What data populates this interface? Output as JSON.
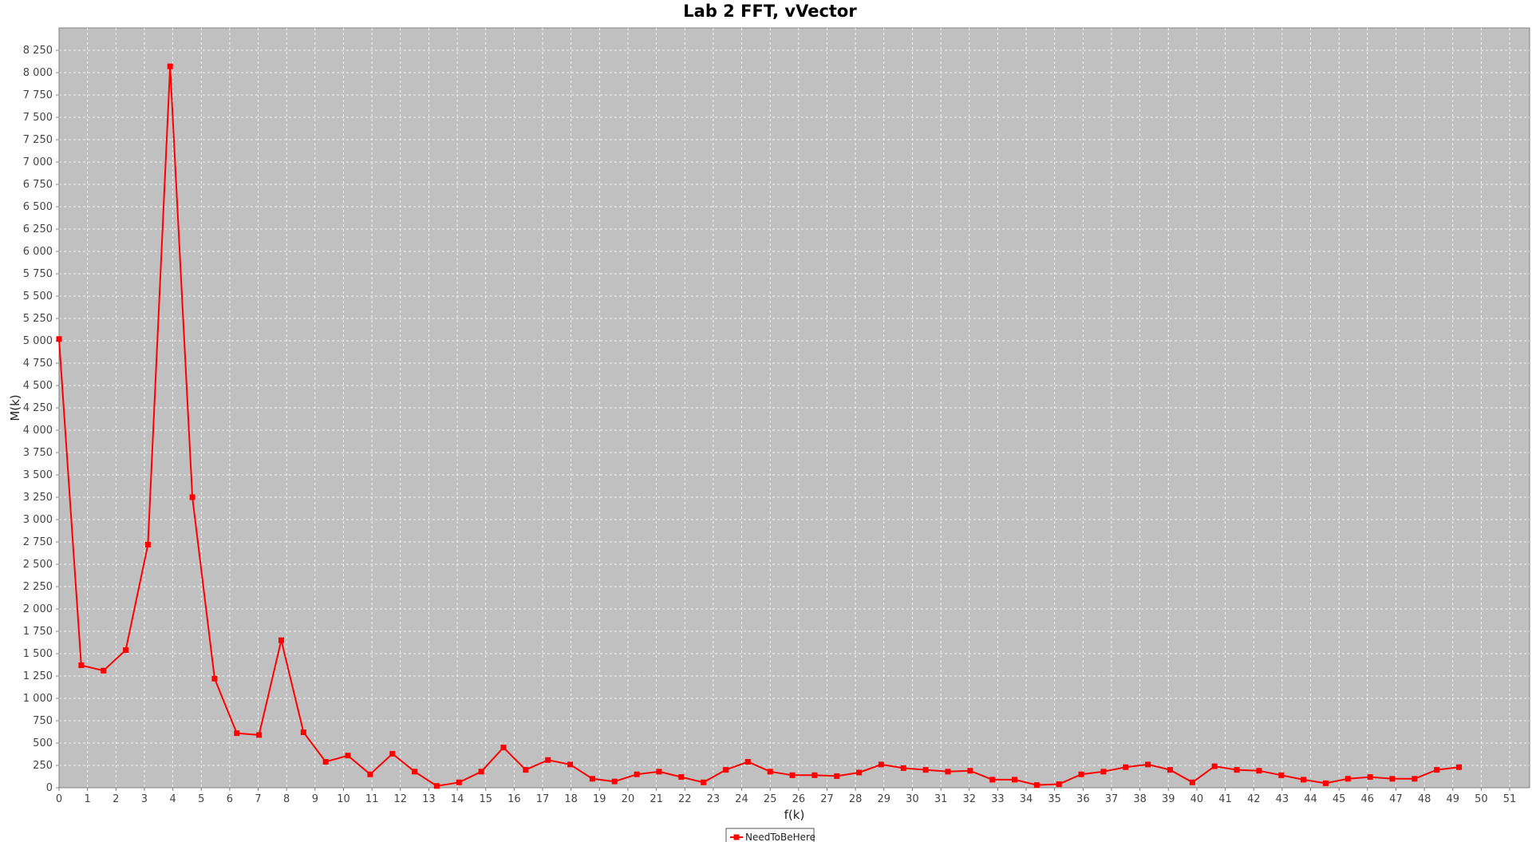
{
  "chart_data": {
    "type": "line",
    "title": "Lab 2 FFT, vVector",
    "xlabel": "f(k)",
    "ylabel": "M(k)",
    "xlim": [
      0,
      51.7
    ],
    "ylim": [
      0,
      8500
    ],
    "x_ticks": [
      0,
      1,
      2,
      3,
      4,
      5,
      6,
      7,
      8,
      9,
      10,
      11,
      12,
      13,
      14,
      15,
      16,
      17,
      18,
      19,
      20,
      21,
      22,
      23,
      24,
      25,
      26,
      27,
      28,
      29,
      30,
      31,
      32,
      33,
      34,
      35,
      36,
      37,
      38,
      39,
      40,
      41,
      42,
      43,
      44,
      45,
      46,
      47,
      48,
      49,
      50,
      51
    ],
    "y_ticks": [
      0,
      250,
      500,
      750,
      1000,
      1250,
      1500,
      1750,
      2000,
      2250,
      2500,
      2750,
      3000,
      3250,
      3500,
      3750,
      4000,
      4250,
      4500,
      4750,
      5000,
      5250,
      5500,
      5750,
      6000,
      6250,
      6500,
      6750,
      7000,
      7250,
      7500,
      7750,
      8000,
      8250
    ],
    "y_tick_labels": [
      "0",
      "250",
      "500",
      "750",
      "1 000",
      "1 250",
      "1 500",
      "1 750",
      "2 000",
      "2 250",
      "2 500",
      "2 750",
      "3 000",
      "3 250",
      "3 500",
      "3 750",
      "4 000",
      "4 250",
      "4 500",
      "4 750",
      "5 000",
      "5 250",
      "5 500",
      "5 750",
      "6 000",
      "6 250",
      "6 500",
      "6 750",
      "7 000",
      "7 250",
      "7 500",
      "7 750",
      "8 000",
      "8 250"
    ],
    "grid": true,
    "legend_position": "bottom-center",
    "plot_background": "#c0c0c0",
    "series": [
      {
        "name": "NeedToBeHere",
        "color": "#ff0000",
        "x": [
          0,
          0.781,
          1.563,
          2.344,
          3.125,
          3.906,
          4.688,
          5.469,
          6.25,
          7.031,
          7.813,
          8.594,
          9.375,
          10.156,
          10.938,
          11.719,
          12.5,
          13.281,
          14.063,
          14.844,
          15.625,
          16.406,
          17.188,
          17.969,
          18.75,
          19.531,
          20.313,
          21.094,
          21.875,
          22.656,
          23.438,
          24.219,
          25,
          25.781,
          26.563,
          27.344,
          28.125,
          28.906,
          29.688,
          30.469,
          31.25,
          32.031,
          32.813,
          33.594,
          34.375,
          35.156,
          35.938,
          36.719,
          37.5,
          38.281,
          39.063,
          39.844,
          40.625,
          41.406,
          42.188,
          42.969,
          43.75,
          44.531,
          45.313,
          46.094,
          46.875,
          47.656,
          48.438,
          49.219
        ],
        "y": [
          5020,
          1370,
          1310,
          1540,
          2720,
          8070,
          3250,
          1220,
          610,
          590,
          1650,
          620,
          290,
          360,
          150,
          380,
          180,
          20,
          60,
          180,
          450,
          200,
          310,
          260,
          100,
          70,
          150,
          180,
          120,
          60,
          200,
          290,
          180,
          140,
          140,
          130,
          170,
          260,
          220,
          200,
          180,
          190,
          90,
          90,
          30,
          40,
          150,
          180,
          230,
          260,
          200,
          60,
          240,
          200,
          190,
          140,
          90,
          50,
          100,
          120,
          100,
          100,
          200,
          230
        ]
      }
    ]
  }
}
